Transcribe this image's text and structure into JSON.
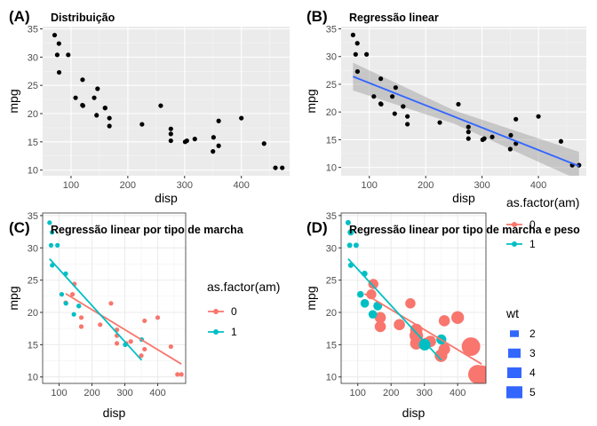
{
  "chart_data": [
    {
      "tag": "(A)",
      "type": "scatter",
      "title": "Distribuição",
      "xlabel": "disp",
      "ylabel": "mpg",
      "xlim": [
        50,
        485
      ],
      "ylim": [
        9,
        35.4
      ],
      "xticks": [
        100,
        200,
        300,
        400
      ],
      "yticks": [
        10,
        15,
        20,
        25,
        30,
        35
      ],
      "grid": true,
      "theme": "gray",
      "point_color": "#000000",
      "points": [
        [
          160,
          21.0
        ],
        [
          160,
          21.0
        ],
        [
          108,
          22.8
        ],
        [
          258,
          21.4
        ],
        [
          360,
          18.7
        ],
        [
          225,
          18.1
        ],
        [
          360,
          14.3
        ],
        [
          146.7,
          24.4
        ],
        [
          140.8,
          22.8
        ],
        [
          167.6,
          19.2
        ],
        [
          167.6,
          17.8
        ],
        [
          275.8,
          16.4
        ],
        [
          275.8,
          17.3
        ],
        [
          275.8,
          15.2
        ],
        [
          472,
          10.4
        ],
        [
          460,
          10.4
        ],
        [
          440,
          14.7
        ],
        [
          78.7,
          32.4
        ],
        [
          75.7,
          30.4
        ],
        [
          71.1,
          33.9
        ],
        [
          120.1,
          21.5
        ],
        [
          318,
          15.5
        ],
        [
          304,
          15.2
        ],
        [
          350,
          13.3
        ],
        [
          400,
          19.2
        ],
        [
          79,
          27.3
        ],
        [
          120.3,
          26.0
        ],
        [
          95.1,
          30.4
        ],
        [
          351,
          15.8
        ],
        [
          145,
          19.7
        ],
        [
          301,
          15.0
        ],
        [
          121,
          21.4
        ]
      ]
    },
    {
      "tag": "(B)",
      "type": "scatter",
      "title": "Regressão linear",
      "xlabel": "disp",
      "ylabel": "mpg",
      "xlim": [
        50,
        485
      ],
      "ylim": [
        8.5,
        35.4
      ],
      "xticks": [
        100,
        200,
        300,
        400
      ],
      "yticks": [
        10,
        15,
        20,
        25,
        30,
        35
      ],
      "grid": true,
      "theme": "gray",
      "point_color": "#000000",
      "points": "same as (A)",
      "fit": {
        "method": "lm",
        "color": "#3366FF",
        "band_color": "#999999",
        "line": [
          [
            71.1,
            26.39
          ],
          [
            472,
            10.24
          ]
        ],
        "band": [
          [
            71.1,
            28.9,
            23.9
          ],
          [
            250,
            20.3,
            17.9
          ],
          [
            472,
            12.8,
            7.7
          ]
        ]
      }
    },
    {
      "tag": "(C)",
      "type": "scatter",
      "title": "Regressão linear por tipo de marcha",
      "xlabel": "disp",
      "ylabel": "mpg",
      "xlim": [
        50,
        485
      ],
      "ylim": [
        9,
        35.4
      ],
      "xticks": [
        100,
        200,
        300,
        400
      ],
      "yticks": [
        10,
        15,
        20,
        25,
        30,
        35
      ],
      "grid": true,
      "theme": "bw",
      "legend": {
        "title": "as.factor(am)",
        "entries": [
          {
            "label": "0",
            "color": "#F8766D"
          },
          {
            "label": "1",
            "color": "#00BFC4"
          }
        ],
        "position": "right"
      },
      "series": [
        {
          "name": "0",
          "color": "#F8766D",
          "points": [
            [
              258,
              21.4
            ],
            [
              360,
              18.7
            ],
            [
              225,
              18.1
            ],
            [
              360,
              14.3
            ],
            [
              146.7,
              24.4
            ],
            [
              140.8,
              22.8
            ],
            [
              167.6,
              19.2
            ],
            [
              167.6,
              17.8
            ],
            [
              275.8,
              16.4
            ],
            [
              275.8,
              17.3
            ],
            [
              275.8,
              15.2
            ],
            [
              472,
              10.4
            ],
            [
              460,
              10.4
            ],
            [
              440,
              14.7
            ],
            [
              120.1,
              21.5
            ],
            [
              318,
              15.5
            ],
            [
              304,
              15.2
            ],
            [
              350,
              13.3
            ],
            [
              400,
              19.2
            ]
          ],
          "fit": [
            [
              120.1,
              22.9
            ],
            [
              472,
              12.0
            ]
          ]
        },
        {
          "name": "1",
          "color": "#00BFC4",
          "points": [
            [
              160,
              21.0
            ],
            [
              160,
              21.0
            ],
            [
              108,
              22.8
            ],
            [
              78.7,
              32.4
            ],
            [
              75.7,
              30.4
            ],
            [
              71.1,
              33.9
            ],
            [
              79,
              27.3
            ],
            [
              120.3,
              26.0
            ],
            [
              95.1,
              30.4
            ],
            [
              351,
              15.8
            ],
            [
              145,
              19.7
            ],
            [
              301,
              15.0
            ],
            [
              121,
              21.4
            ]
          ],
          "fit": [
            [
              71.1,
              28.3
            ],
            [
              351,
              12.6
            ]
          ]
        }
      ]
    },
    {
      "tag": "(D)",
      "type": "scatter",
      "title": "Regressão linear por tipo de marcha e peso",
      "xlabel": "disp",
      "ylabel": "mpg",
      "xlim": [
        50,
        485
      ],
      "ylim": [
        9,
        35.4
      ],
      "xticks": [
        100,
        200,
        300,
        400
      ],
      "yticks": [
        10,
        15,
        20,
        25,
        30,
        35
      ],
      "grid": true,
      "theme": "bw",
      "legend": [
        {
          "title": "as.factor(am)",
          "entries": [
            {
              "label": "0",
              "color": "#F8766D"
            },
            {
              "label": "1",
              "color": "#00BFC4"
            }
          ],
          "position": "right"
        },
        {
          "title": "wt",
          "entries": [
            {
              "label": "2"
            },
            {
              "label": "3"
            },
            {
              "label": "4"
            },
            {
              "label": "5"
            }
          ],
          "color": "#3366FF",
          "position": "right"
        }
      ],
      "series": [
        {
          "name": "0",
          "color": "#F8766D",
          "points": [
            [
              258,
              21.4,
              3.215
            ],
            [
              360,
              18.7,
              3.44
            ],
            [
              225,
              18.1,
              3.46
            ],
            [
              360,
              14.3,
              3.57
            ],
            [
              146.7,
              24.4,
              3.19
            ],
            [
              140.8,
              22.8,
              3.15
            ],
            [
              167.6,
              19.2,
              3.44
            ],
            [
              167.6,
              17.8,
              3.44
            ],
            [
              275.8,
              16.4,
              4.07
            ],
            [
              275.8,
              17.3,
              3.73
            ],
            [
              275.8,
              15.2,
              3.78
            ],
            [
              472,
              10.4,
              5.25
            ],
            [
              460,
              10.4,
              5.424
            ],
            [
              440,
              14.7,
              5.345
            ],
            [
              120.1,
              21.5,
              2.465
            ],
            [
              318,
              15.5,
              3.52
            ],
            [
              304,
              15.2,
              3.435
            ],
            [
              350,
              13.3,
              3.84
            ],
            [
              400,
              19.2,
              3.845
            ]
          ],
          "fit": [
            [
              120.1,
              22.9
            ],
            [
              472,
              12.0
            ]
          ]
        },
        {
          "name": "1",
          "color": "#00BFC4",
          "points": [
            [
              160,
              21.0,
              2.62
            ],
            [
              160,
              21.0,
              2.875
            ],
            [
              108,
              22.8,
              2.32
            ],
            [
              78.7,
              32.4,
              2.2
            ],
            [
              75.7,
              30.4,
              1.615
            ],
            [
              71.1,
              33.9,
              1.835
            ],
            [
              79,
              27.3,
              1.935
            ],
            [
              120.3,
              26.0,
              2.14
            ],
            [
              95.1,
              30.4,
              1.513
            ],
            [
              351,
              15.8,
              3.17
            ],
            [
              145,
              19.7,
              2.77
            ],
            [
              301,
              15.0,
              3.57
            ],
            [
              121,
              21.4,
              2.78
            ]
          ],
          "fit": [
            [
              71.1,
              28.3
            ],
            [
              351,
              12.6
            ]
          ]
        }
      ]
    }
  ]
}
